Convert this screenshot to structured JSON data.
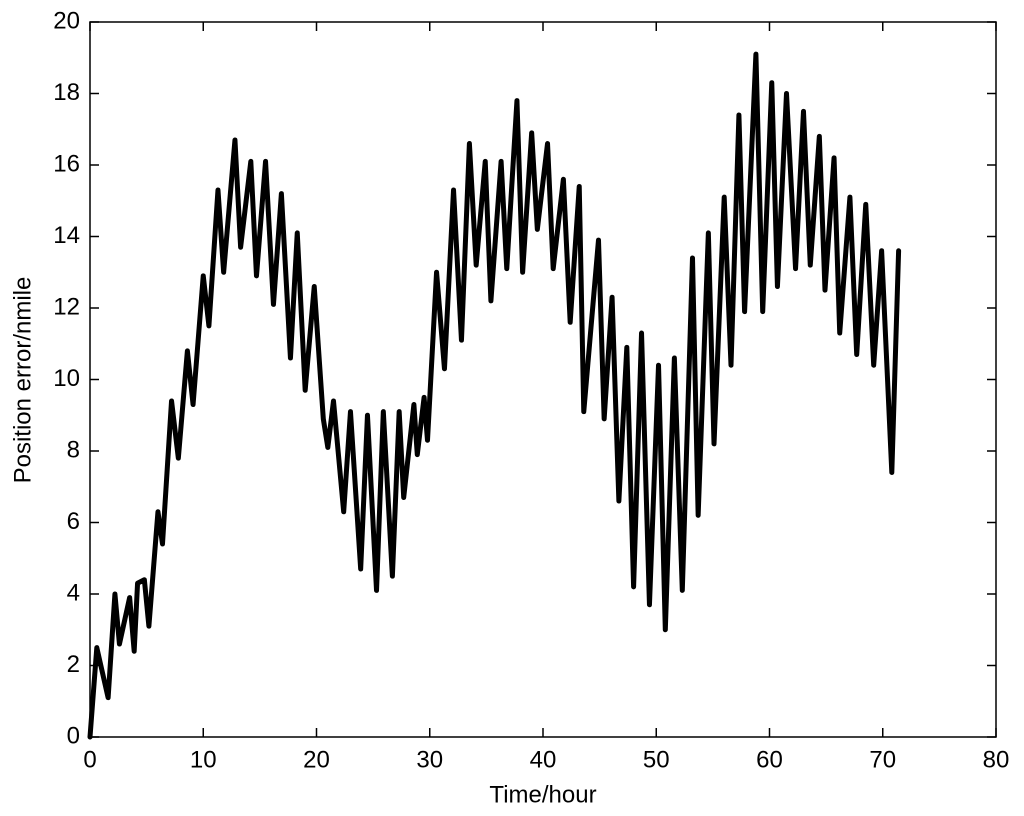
{
  "chart_data": {
    "type": "line",
    "xlabel": "Time/hour",
    "ylabel": "Position error/nmile",
    "color": "#000000",
    "xlim": [
      0,
      80
    ],
    "xticks": [
      0,
      10,
      20,
      30,
      40,
      50,
      60,
      70,
      80
    ],
    "ylim": [
      0,
      20
    ],
    "yticks": [
      0,
      2,
      4,
      6,
      8,
      10,
      12,
      14,
      16,
      18,
      20
    ],
    "grid": false,
    "x": [
      0,
      0.6,
      1.6,
      2.2,
      2.6,
      3.5,
      3.9,
      4.2,
      4.8,
      5.2,
      6.0,
      6.4,
      7.2,
      7.8,
      8.6,
      9.1,
      10.0,
      10.5,
      11.3,
      11.8,
      12.8,
      13.3,
      14.2,
      14.7,
      15.5,
      16.2,
      16.9,
      17.7,
      18.3,
      19.0,
      19.8,
      20.6,
      21.0,
      21.5,
      22.4,
      23.0,
      23.9,
      24.5,
      25.3,
      25.9,
      26.7,
      27.3,
      27.7,
      28.6,
      28.9,
      29.5,
      29.8,
      30.6,
      31.3,
      32.1,
      32.8,
      33.5,
      34.1,
      34.9,
      35.4,
      36.3,
      36.8,
      37.7,
      38.2,
      39.0,
      39.5,
      40.4,
      40.9,
      41.8,
      42.4,
      43.2,
      43.6,
      44.9,
      45.4,
      46.1,
      46.7,
      47.4,
      48.0,
      48.7,
      49.4,
      50.2,
      50.8,
      51.6,
      52.3,
      53.2,
      53.7,
      54.6,
      55.1,
      56.0,
      56.6,
      57.3,
      57.8,
      58.8,
      59.4,
      60.2,
      60.7,
      61.5,
      62.3,
      63.0,
      63.6,
      64.4,
      64.9,
      65.7,
      66.2,
      67.1,
      67.7,
      68.5,
      69.2,
      69.9,
      70.8,
      71.4
    ],
    "values": [
      0,
      2.5,
      1.1,
      4.0,
      2.6,
      3.9,
      2.4,
      4.3,
      4.4,
      3.1,
      6.3,
      5.4,
      9.4,
      7.8,
      10.8,
      9.3,
      12.9,
      11.5,
      15.3,
      13.0,
      16.7,
      13.7,
      16.1,
      12.9,
      16.1,
      12.1,
      15.2,
      10.6,
      14.1,
      9.7,
      12.6,
      8.9,
      8.1,
      9.4,
      6.3,
      9.1,
      4.7,
      9.0,
      4.1,
      9.1,
      4.5,
      9.1,
      6.7,
      9.3,
      7.9,
      9.5,
      8.3,
      13.0,
      10.3,
      15.3,
      11.1,
      16.6,
      13.2,
      16.1,
      12.2,
      16.1,
      13.1,
      17.8,
      13.0,
      16.9,
      14.2,
      16.6,
      13.1,
      15.6,
      11.6,
      15.4,
      9.1,
      13.9,
      8.9,
      12.3,
      6.6,
      10.9,
      4.2,
      11.3,
      3.7,
      10.4,
      3.0,
      10.6,
      4.1,
      13.4,
      6.2,
      14.1,
      8.2,
      15.1,
      10.4,
      17.4,
      11.9,
      19.1,
      11.9,
      18.3,
      12.6,
      18.0,
      13.1,
      17.5,
      13.2,
      16.8,
      12.5,
      16.2,
      11.3,
      15.1,
      10.7,
      14.9,
      10.4,
      13.6,
      7.4,
      13.6
    ]
  }
}
